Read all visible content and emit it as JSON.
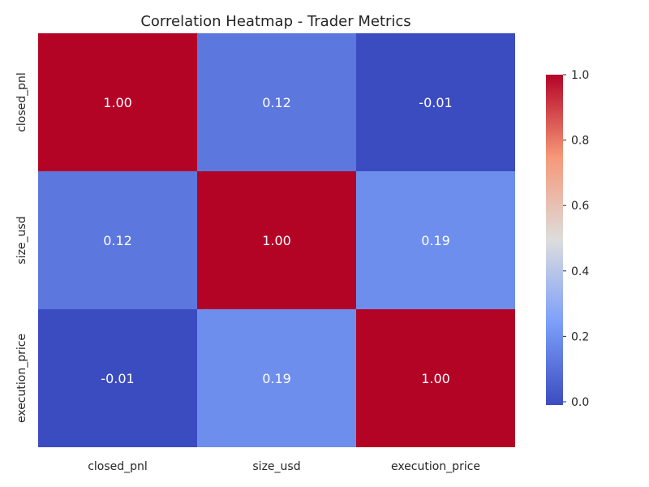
{
  "chart_data": {
    "type": "heatmap",
    "title": "Correlation Heatmap - Trader Metrics",
    "x_categories": [
      "closed_pnl",
      "size_usd",
      "execution_price"
    ],
    "y_categories": [
      "closed_pnl",
      "size_usd",
      "execution_price"
    ],
    "values": [
      [
        1.0,
        0.12,
        -0.01
      ],
      [
        0.12,
        1.0,
        0.19
      ],
      [
        -0.01,
        0.19,
        1.0
      ]
    ],
    "cell_labels": [
      [
        "1.00",
        "0.12",
        "-0.01"
      ],
      [
        "0.12",
        "1.00",
        "0.19"
      ],
      [
        "-0.01",
        "0.19",
        "1.00"
      ]
    ],
    "colormap": "coolwarm",
    "colorbar": {
      "range": [
        -0.01,
        1.0
      ],
      "ticks": [
        0.0,
        0.2,
        0.4,
        0.6,
        0.8,
        1.0
      ],
      "tick_labels": [
        "0.0",
        "0.2",
        "0.4",
        "0.6",
        "0.8",
        "1.0"
      ]
    },
    "colors": {
      "low": "#3b4cc0",
      "mid": "#dddddd",
      "high": "#b40426",
      "text": "#262626"
    }
  }
}
